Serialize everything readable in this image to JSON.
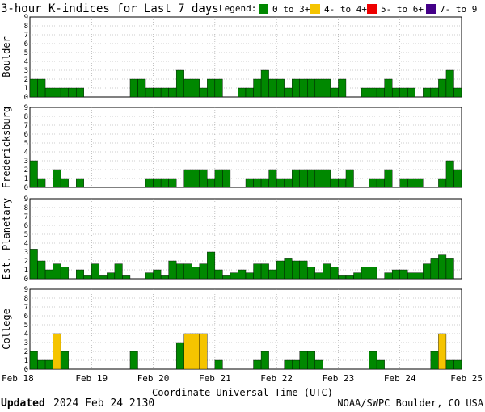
{
  "chart_data": {
    "type": "bar",
    "title": "3-hour K-indices for Last 7 days",
    "legend": {
      "label": "Legend:",
      "placement": "top-right",
      "entries": [
        {
          "label": "0 to 3+",
          "color": "#008800"
        },
        {
          "label": "4- to 4+",
          "color": "#f5c400"
        },
        {
          "label": "5- to 6+",
          "color": "#ee0000"
        },
        {
          "label": "7- to 9",
          "color": "#440088"
        }
      ]
    },
    "xlabel": "Coordinate Universal Time (UTC)",
    "x_ticks": [
      "Feb 18",
      "Feb 19",
      "Feb 20",
      "Feb 21",
      "Feb 22",
      "Feb 23",
      "Feb 24",
      "Feb 25"
    ],
    "ylim": [
      0,
      9
    ],
    "y_ticks": [
      "0",
      "1",
      "2",
      "3",
      "4",
      "5",
      "6",
      "7",
      "8",
      "9"
    ],
    "grid": true,
    "interval_hours": 3,
    "panels": [
      {
        "name": "Boulder",
        "values": [
          2,
          2,
          1,
          1,
          1,
          1,
          1,
          0,
          0,
          0,
          0,
          0,
          0,
          2,
          2,
          1,
          1,
          1,
          1,
          3,
          2,
          2,
          1,
          2,
          2,
          0,
          0,
          1,
          1,
          2,
          3,
          2,
          2,
          1,
          2,
          2,
          2,
          2,
          2,
          1,
          2,
          0,
          0,
          1,
          1,
          1,
          2,
          1,
          1,
          1,
          0,
          1,
          1,
          2,
          3,
          1,
          0
        ]
      },
      {
        "name": "Fredericksburg",
        "values": [
          3,
          1,
          0,
          2,
          1,
          0,
          1,
          0,
          0,
          0,
          0,
          0,
          0,
          0,
          0,
          1,
          1,
          1,
          1,
          0,
          2,
          2,
          2,
          1,
          2,
          2,
          0,
          0,
          1,
          1,
          1,
          2,
          1,
          1,
          2,
          2,
          2,
          2,
          2,
          1,
          1,
          2,
          0,
          0,
          1,
          1,
          2,
          0,
          1,
          1,
          1,
          0,
          0,
          1,
          3,
          2,
          2
        ]
      },
      {
        "name": "Est. Planetary",
        "values": [
          3.33,
          2,
          1,
          1.67,
          1.33,
          0,
          1,
          0.33,
          1.67,
          0.33,
          0.67,
          1.67,
          0.33,
          0,
          0,
          0.67,
          1,
          0.33,
          2,
          1.67,
          1.67,
          1.33,
          1.67,
          3,
          1,
          0.33,
          0.67,
          1,
          0.67,
          1.67,
          1.67,
          1,
          2,
          2.33,
          2,
          2,
          1.33,
          0.67,
          1.67,
          1.33,
          0.33,
          0.33,
          0.67,
          1.33,
          1.33,
          0,
          0.67,
          1,
          1,
          0.67,
          0.67,
          1.67,
          2.33,
          2.67,
          2.33
        ]
      },
      {
        "name": "College",
        "values": [
          2,
          1,
          1,
          4,
          2,
          0,
          0,
          0,
          0,
          0,
          0,
          0,
          0,
          2,
          0,
          0,
          0,
          0,
          0,
          3,
          4,
          4,
          4,
          0,
          1,
          0,
          0,
          0,
          0,
          1,
          2,
          0,
          0,
          1,
          1,
          2,
          2,
          1,
          0,
          0,
          0,
          0,
          0,
          0,
          2,
          1,
          0,
          0,
          0,
          0,
          0,
          0,
          2,
          4,
          1,
          1,
          0
        ]
      }
    ]
  },
  "footer": {
    "updated_label": "Updated",
    "updated_value": "2024 Feb 24 2130",
    "credit": "NOAA/SWPC Boulder, CO USA"
  }
}
